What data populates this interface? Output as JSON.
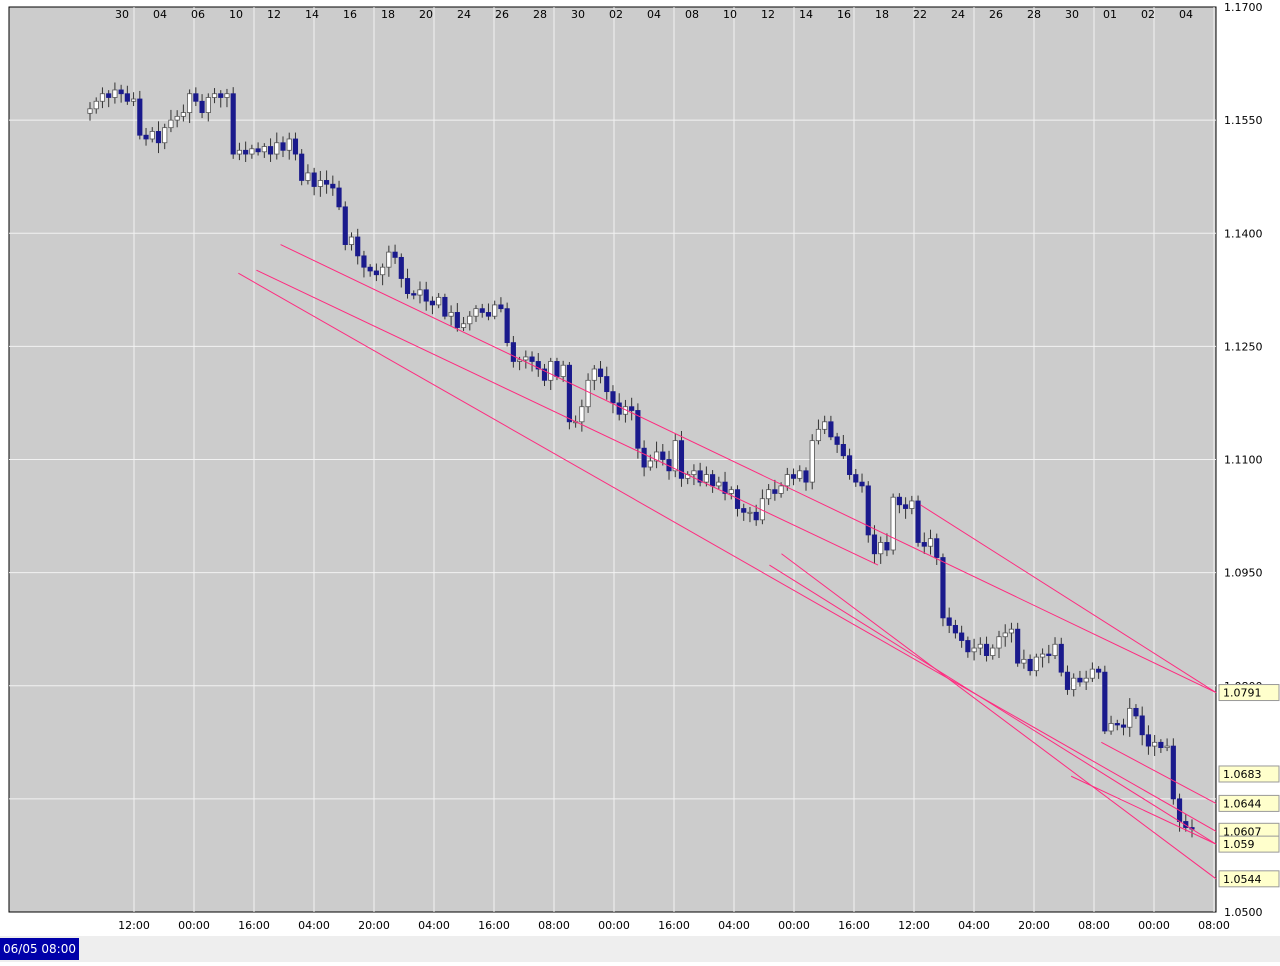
{
  "status": {
    "date_label": "06/05 08:00"
  },
  "chart_data": {
    "type": "candlestick",
    "title": "",
    "colors": {
      "background": "#cccccc",
      "grid": "#f2f2f2",
      "up_candle": "#ffffff",
      "down_candle": "#1a1a8c",
      "wick": "#333333",
      "trendline": "#ff2a7f",
      "price_box": "#ffffcc"
    },
    "y_axis": {
      "ylim": [
        1.05,
        1.17
      ],
      "ticks": [
        "1.0500",
        "1.0650",
        "1.0800",
        "1.0950",
        "1.1100",
        "1.1250",
        "1.1400",
        "1.1550",
        "1.1700"
      ]
    },
    "x_axis_bottom_ticks": [
      "12:00",
      "00:00",
      "16:00",
      "04:00",
      "20:00",
      "04:00",
      "16:00",
      "08:00",
      "00:00",
      "16:00",
      "04:00",
      "00:00",
      "16:00",
      "12:00",
      "04:00",
      "20:00",
      "08:00",
      "00:00",
      "08:00"
    ],
    "x_axis_top_ticks": [
      "30",
      "04",
      "06",
      "10",
      "12",
      "14",
      "16",
      "18",
      "20",
      "24",
      "26",
      "28",
      "30",
      "02",
      "04",
      "08",
      "10",
      "12",
      "14",
      "16",
      "18",
      "22",
      "24",
      "26",
      "28",
      "30",
      "01",
      "02",
      "04"
    ],
    "price_labels": [
      "1.0791",
      "1.0683",
      "1.0644",
      "1.0607",
      "1.059",
      "1.0544"
    ],
    "trendlines": [
      {
        "from": [
          0.205,
          1.1351
        ],
        "to": [
          0.72,
          1.096
        ]
      },
      {
        "from": [
          0.225,
          1.1385
        ],
        "to": [
          1.0,
          1.0791
        ]
      },
      {
        "from": [
          0.19,
          1.1347
        ],
        "to": [
          1.0,
          1.0607
        ]
      },
      {
        "from": [
          0.63,
          1.096
        ],
        "to": [
          1.0,
          1.059
        ]
      },
      {
        "from": [
          0.64,
          1.0975
        ],
        "to": [
          1.0,
          1.0544
        ]
      },
      {
        "from": [
          0.755,
          1.104
        ],
        "to": [
          1.0,
          1.0791
        ]
      },
      {
        "from": [
          0.905,
          1.0725
        ],
        "to": [
          1.0,
          1.0644
        ]
      },
      {
        "from": [
          0.88,
          1.068
        ],
        "to": [
          1.0,
          1.059
        ]
      }
    ],
    "series_close": [
      1.1565,
      1.1575,
      1.1585,
      1.158,
      1.159,
      1.1585,
      1.1575,
      1.1578,
      1.153,
      1.1525,
      1.1535,
      1.152,
      1.154,
      1.155,
      1.1555,
      1.156,
      1.1585,
      1.1575,
      1.156,
      1.158,
      1.1585,
      1.158,
      1.1585,
      1.1505,
      1.151,
      1.1505,
      1.1512,
      1.1508,
      1.1515,
      1.1505,
      1.152,
      1.151,
      1.1525,
      1.1505,
      1.147,
      1.148,
      1.1462,
      1.147,
      1.1465,
      1.146,
      1.1435,
      1.1385,
      1.1395,
      1.137,
      1.1355,
      1.135,
      1.1345,
      1.1355,
      1.1375,
      1.1368,
      1.134,
      1.132,
      1.1318,
      1.1325,
      1.131,
      1.1305,
      1.1315,
      1.129,
      1.1295,
      1.1275,
      1.128,
      1.129,
      1.13,
      1.1295,
      1.129,
      1.1305,
      1.13,
      1.1255,
      1.123,
      1.1232,
      1.1236,
      1.123,
      1.122,
      1.1205,
      1.123,
      1.121,
      1.1225,
      1.115,
      1.115,
      1.117,
      1.1205,
      1.122,
      1.121,
      1.119,
      1.1175,
      1.116,
      1.117,
      1.1165,
      1.1115,
      1.109,
      1.1098,
      1.111,
      1.11,
      1.1085,
      1.1125,
      1.1075,
      1.108,
      1.1085,
      1.107,
      1.108,
      1.1065,
      1.107,
      1.1055,
      1.106,
      1.1035,
      1.103,
      1.103,
      1.102,
      1.1048,
      1.106,
      1.1055,
      1.1065,
      1.108,
      1.1075,
      1.1085,
      1.107,
      1.1125,
      1.114,
      1.115,
      1.113,
      1.112,
      1.1105,
      1.108,
      1.107,
      1.1065,
      1.1,
      1.0975,
      1.099,
      1.098,
      1.105,
      1.104,
      1.1035,
      1.1045,
      1.099,
      1.0985,
      1.0995,
      1.097,
      1.089,
      1.088,
      1.087,
      1.086,
      1.0845,
      1.085,
      1.0855,
      1.084,
      1.085,
      1.0865,
      1.087,
      1.0875,
      1.083,
      1.0835,
      1.082,
      1.0838,
      1.0842,
      1.084,
      1.0855,
      1.0818,
      1.0795,
      1.081,
      1.0805,
      1.081,
      1.0822,
      1.0818,
      1.074,
      1.075,
      1.0748,
      1.0745,
      1.077,
      1.076,
      1.0735,
      1.072,
      1.0725,
      1.0718,
      1.072,
      1.065,
      1.062,
      1.0612,
      1.061
    ]
  }
}
